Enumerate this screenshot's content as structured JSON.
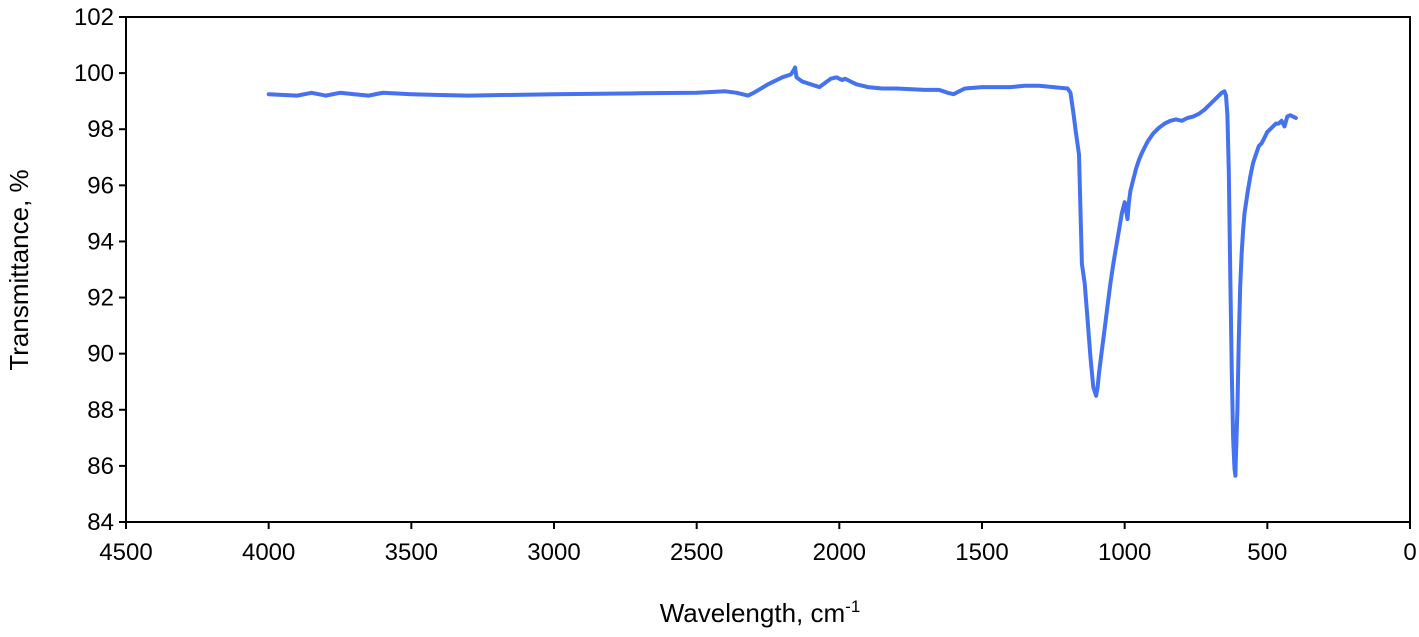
{
  "chart_data": {
    "type": "line",
    "title": "",
    "xlabel": "Wavelength, cm",
    "xlabel_sup": "-1",
    "ylabel": "Transmittance, %",
    "xlim": [
      4500,
      0
    ],
    "ylim": [
      84,
      102
    ],
    "x_ticks": [
      4500,
      4000,
      3500,
      3000,
      2500,
      2000,
      1500,
      1000,
      500,
      0
    ],
    "y_ticks": [
      84,
      86,
      88,
      90,
      92,
      94,
      96,
      98,
      100,
      102
    ],
    "x_reversed": true,
    "grid": false,
    "legend": "none",
    "line_color": "#4472F0",
    "series": [
      {
        "x": [
          4000,
          3900,
          3850,
          3800,
          3750,
          3700,
          3650,
          3600,
          3500,
          3400,
          3300,
          3000,
          2700,
          2500,
          2400,
          2360,
          2340,
          2320,
          2300,
          2250,
          2200,
          2170,
          2160,
          2155,
          2150,
          2130,
          2100,
          2070,
          2050,
          2030,
          2010,
          2000,
          1990,
          1980,
          1960,
          1940,
          1900,
          1850,
          1800,
          1700,
          1650,
          1620,
          1600,
          1580,
          1560,
          1500,
          1450,
          1400,
          1350,
          1300,
          1250,
          1200,
          1190,
          1180,
          1170,
          1160,
          1150,
          1140,
          1130,
          1120,
          1110,
          1100,
          1095,
          1090,
          1080,
          1070,
          1060,
          1050,
          1040,
          1030,
          1020,
          1010,
          1000,
          990,
          985,
          980,
          975,
          970,
          965,
          960,
          950,
          940,
          930,
          920,
          900,
          880,
          860,
          840,
          820,
          800,
          780,
          760,
          740,
          720,
          700,
          680,
          660,
          650,
          645,
          640,
          635,
          630,
          625,
          620,
          615,
          612,
          610,
          605,
          600,
          595,
          590,
          585,
          580,
          570,
          560,
          550,
          540,
          530,
          520,
          510,
          500,
          490,
          480,
          470,
          460,
          450,
          440,
          430,
          420,
          410,
          400
        ],
        "y": [
          99.25,
          99.2,
          99.3,
          99.2,
          99.3,
          99.25,
          99.2,
          99.3,
          99.25,
          99.22,
          99.2,
          99.25,
          99.28,
          99.3,
          99.35,
          99.3,
          99.25,
          99.2,
          99.3,
          99.6,
          99.85,
          99.95,
          100.1,
          100.2,
          99.85,
          99.7,
          99.6,
          99.5,
          99.65,
          99.8,
          99.85,
          99.8,
          99.75,
          99.8,
          99.7,
          99.6,
          99.5,
          99.45,
          99.45,
          99.4,
          99.4,
          99.3,
          99.25,
          99.35,
          99.45,
          99.5,
          99.5,
          99.5,
          99.55,
          99.55,
          99.5,
          99.45,
          99.3,
          98.6,
          97.8,
          97.1,
          93.2,
          92.5,
          91.2,
          89.9,
          88.8,
          88.5,
          88.8,
          89.3,
          90.1,
          90.9,
          91.7,
          92.5,
          93.2,
          93.8,
          94.4,
          95.0,
          95.4,
          94.8,
          95.4,
          95.8,
          96.0,
          96.2,
          96.4,
          96.6,
          96.9,
          97.15,
          97.35,
          97.55,
          97.85,
          98.05,
          98.2,
          98.3,
          98.35,
          98.3,
          98.4,
          98.45,
          98.55,
          98.7,
          98.9,
          99.1,
          99.3,
          99.35,
          99.2,
          98.5,
          96.5,
          93.0,
          89.5,
          87.0,
          85.9,
          85.65,
          86.3,
          88.0,
          90.5,
          92.4,
          93.6,
          94.4,
          95.0,
          95.7,
          96.3,
          96.8,
          97.1,
          97.4,
          97.5,
          97.7,
          97.9,
          98.0,
          98.1,
          98.2,
          98.2,
          98.3,
          98.1,
          98.45,
          98.5,
          98.45,
          98.4
        ]
      }
    ]
  }
}
